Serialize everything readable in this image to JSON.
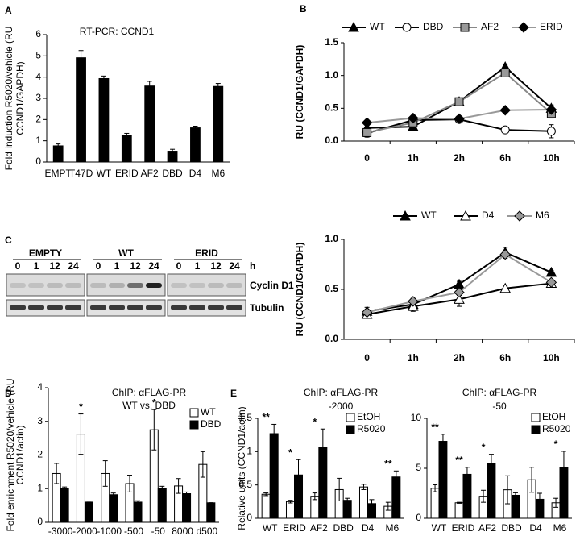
{
  "chart_data": [
    {
      "type": "bar",
      "panel": "A",
      "title": "RT-PCR: CCND1",
      "ylabel": [
        "Fold induction R5020/vehicle (RU",
        "CCND1/GAPDH)"
      ],
      "categories": [
        "EMPT",
        "T47D",
        "WT",
        "ERID",
        "AF2",
        "DBD",
        "D4",
        "M6"
      ],
      "values": [
        0.78,
        4.93,
        3.95,
        1.28,
        3.6,
        0.53,
        1.63,
        3.58
      ],
      "errors": [
        0.07,
        0.32,
        0.1,
        0.07,
        0.2,
        0.07,
        0.06,
        0.12
      ],
      "color": "#000000",
      "ylim": [
        0,
        6
      ],
      "yticks": [
        0,
        1,
        2,
        3,
        4,
        5,
        6
      ]
    },
    {
      "type": "line",
      "panel": "B",
      "ylabel": "RU (CCND1/GAPDH)",
      "categories": [
        "0",
        "1h",
        "2h",
        "6h",
        "10h"
      ],
      "series": [
        {
          "name": "WT",
          "color": "#000000",
          "marker": "triangle",
          "marker_fill": "#000000",
          "values": [
            0.2,
            0.22,
            0.6,
            1.13,
            0.5
          ],
          "errors": [
            0.05,
            0.04,
            0.03,
            0.04,
            0.05
          ]
        },
        {
          "name": "DBD",
          "color": "#000000",
          "marker": "circle",
          "marker_fill": "#ffffff",
          "values": [
            0.12,
            0.32,
            0.33,
            0.17,
            0.15
          ],
          "errors": [
            0.06,
            0.05,
            0.04,
            0.04,
            0.1
          ]
        },
        {
          "name": "AF2",
          "color": "#888888",
          "marker": "square",
          "marker_fill": "#999999",
          "values": [
            0.13,
            0.28,
            0.6,
            1.04,
            0.42
          ],
          "errors": [
            0.05,
            0.04,
            0.03,
            0.04,
            0.07
          ]
        },
        {
          "name": "ERID",
          "color": "#999999",
          "marker": "diamond",
          "marker_fill": "#000000",
          "values": [
            0.28,
            0.35,
            0.34,
            0.47,
            0.48
          ],
          "errors": [
            0.02,
            0.02,
            0.04,
            0.02,
            0.02
          ]
        }
      ],
      "ylim": [
        0,
        1.5
      ],
      "yticks": [
        {
          "value": 0,
          "label": "0.0"
        },
        0.5,
        {
          "value": 1,
          "label": "1.0"
        },
        1.5
      ]
    },
    {
      "type": "line",
      "ylabel": "RU (CCND1/GAPDH)",
      "categories": [
        "0",
        "1h",
        "2h",
        "6h",
        "10h"
      ],
      "series": [
        {
          "name": "WT",
          "color": "#000000",
          "marker": "triangle",
          "marker_fill": "#000000",
          "values": [
            0.28,
            0.35,
            0.55,
            0.87,
            0.67
          ],
          "errors": [
            0.04,
            0.04,
            0.03,
            0.05,
            0.02
          ]
        },
        {
          "name": "D4",
          "color": "#000000",
          "marker": "triangle",
          "marker_fill": "#ffffff",
          "values": [
            0.25,
            0.33,
            0.4,
            0.51,
            0.56
          ],
          "errors": [
            0.03,
            0.05,
            0.07,
            0.02,
            0.03
          ]
        },
        {
          "name": "M6",
          "color": "#999999",
          "marker": "diamond",
          "marker_fill": "#999999",
          "values": [
            0.27,
            0.38,
            0.47,
            0.85,
            0.57
          ],
          "errors": [
            0.03,
            0.03,
            0.03,
            0.04,
            0.03
          ]
        }
      ],
      "ylim": [
        0,
        1
      ],
      "yticks": [
        {
          "value": 0,
          "label": "0.0"
        },
        0.5,
        {
          "value": 1,
          "label": "1.0"
        }
      ]
    },
    {
      "type": "bar",
      "panel": "D",
      "title": "ChIP: αFLAG-PR",
      "subtitle": "WT vs. DBD",
      "ylabel": [
        "Fold enrichment R5020/vehicle (RU",
        "CCND1/actin)"
      ],
      "categories": [
        "-3000",
        "-2000",
        "-1000",
        "-500",
        "-50",
        "8000",
        "d500"
      ],
      "series": [
        {
          "name": "WT",
          "color": "#ffffff",
          "values": [
            1.45,
            2.62,
            1.45,
            1.15,
            2.75,
            1.08,
            1.72
          ],
          "errors": [
            0.3,
            0.6,
            0.38,
            0.25,
            0.6,
            0.22,
            0.38
          ]
        },
        {
          "name": "DBD",
          "color": "#000000",
          "values": [
            1.0,
            0.6,
            0.82,
            0.6,
            1.0,
            0.85,
            0.58
          ],
          "errors": [
            0.05,
            0,
            0.05,
            0.04,
            0.07,
            0.05,
            0
          ]
        }
      ],
      "annotations": [
        null,
        "*",
        null,
        null,
        "*",
        null,
        null
      ],
      "ylim": [
        0,
        4
      ],
      "yticks": [
        0,
        1,
        2,
        3,
        4
      ]
    },
    {
      "type": "bar",
      "panel": "E",
      "title": "ChIP: αFLAG-PR",
      "subtitle": "-2000",
      "ylabel": "Relative units (CCND1/actin)",
      "categories": [
        "WT",
        "ERID",
        "AF2",
        "DBD",
        "D4",
        "M6"
      ],
      "series": [
        {
          "name": "EtOH",
          "color": "#ffffff",
          "values": [
            0.36,
            0.25,
            0.33,
            0.43,
            0.47,
            0.18
          ],
          "errors": [
            0.02,
            0.02,
            0.05,
            0.17,
            0.04,
            0.06
          ]
        },
        {
          "name": "R5020",
          "color": "#000000",
          "values": [
            1.27,
            0.65,
            1.06,
            0.27,
            0.22,
            0.62
          ],
          "errors": [
            0.14,
            0.23,
            0.28,
            0.03,
            0.06,
            0.09
          ]
        }
      ],
      "annotations": [
        "**",
        "*",
        "*",
        null,
        null,
        "**"
      ],
      "ylim": [
        0,
        1.5
      ],
      "yticks": [
        0,
        0.5,
        1,
        1.5
      ]
    },
    {
      "type": "bar",
      "title": "ChIP: αFLAG-PR",
      "subtitle": "-50",
      "categories": [
        "WT",
        "ERID",
        "AF2",
        "DBD",
        "D4",
        "M6"
      ],
      "series": [
        {
          "name": "EtOH",
          "color": "#ffffff",
          "values": [
            3.0,
            1.55,
            2.2,
            2.85,
            3.85,
            1.55
          ],
          "errors": [
            0.35,
            0.05,
            0.6,
            1.4,
            1.25,
            0.45
          ]
        },
        {
          "name": "R5020",
          "color": "#000000",
          "values": [
            7.7,
            4.4,
            5.5,
            2.3,
            1.9,
            5.1
          ],
          "errors": [
            0.7,
            0.7,
            0.9,
            0.25,
            0.6,
            1.6
          ]
        }
      ],
      "annotations": [
        "**",
        "**",
        "*",
        null,
        null,
        "*"
      ],
      "ylim": [
        0,
        10
      ],
      "yticks": [
        0,
        5,
        10
      ]
    }
  ],
  "blot": {
    "panel": "C",
    "groups": [
      {
        "name": "EMPTY",
        "lanes": [
          "0",
          "1",
          "12",
          "24"
        ]
      },
      {
        "name": "WT",
        "lanes": [
          "0",
          "1",
          "12",
          "24"
        ]
      },
      {
        "name": "ERID",
        "lanes": [
          "0",
          "1",
          "12",
          "24"
        ]
      }
    ],
    "time_unit": "h",
    "rows": [
      "Cyclin D1",
      "Tubulin"
    ]
  }
}
